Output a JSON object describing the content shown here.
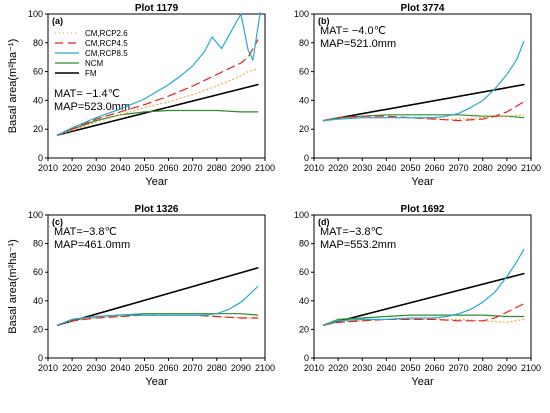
{
  "chart_data": [
    {
      "type": "line",
      "panel_label": "(a)",
      "title": "Plot 1179",
      "xlabel": "Year",
      "ylabel": "Basal area(m²ha⁻¹)",
      "xlim": [
        2010,
        2100
      ],
      "ylim": [
        0,
        100
      ],
      "xticks": [
        "2010",
        "2020",
        "2030",
        "2040",
        "2050",
        "2060",
        "2070",
        "2080",
        "2090",
        "2100"
      ],
      "yticks": [
        "0",
        "20",
        "40",
        "60",
        "80",
        "100"
      ],
      "annotations": [
        "MAT= −1.4℃",
        "MAP=523.0mm"
      ],
      "legend": {
        "placement": "top-left"
      },
      "series": [
        {
          "name": "CM,RCP2.6",
          "color": "#f2a93b",
          "dash": "1,3",
          "x": [
            2014,
            2020,
            2030,
            2040,
            2050,
            2060,
            2070,
            2080,
            2090,
            2093,
            2097
          ],
          "y": [
            16,
            19,
            25,
            30,
            35,
            39,
            44,
            50,
            57,
            60,
            62
          ]
        },
        {
          "name": "CM,RCP4.5",
          "color": "#e8211f",
          "dash": "8,5",
          "x": [
            2014,
            2020,
            2030,
            2040,
            2050,
            2060,
            2070,
            2080,
            2085,
            2090,
            2093,
            2097
          ],
          "y": [
            16,
            20,
            27,
            32,
            37,
            43,
            50,
            58,
            62,
            66,
            70,
            82
          ]
        },
        {
          "name": "CM,RCP8.5",
          "color": "#26a9d2",
          "dash": "",
          "x": [
            2014,
            2020,
            2030,
            2040,
            2050,
            2060,
            2065,
            2070,
            2075,
            2078,
            2082,
            2086,
            2090,
            2093,
            2095,
            2098
          ],
          "y": [
            16,
            21,
            28,
            34,
            41,
            51,
            57,
            64,
            74,
            84,
            76,
            88,
            100,
            75,
            68,
            101
          ]
        },
        {
          "name": "NCM",
          "color": "#2e8b2e",
          "dash": "",
          "x": [
            2014,
            2020,
            2030,
            2040,
            2050,
            2060,
            2070,
            2080,
            2090,
            2097
          ],
          "y": [
            16,
            20,
            26,
            30,
            32,
            33,
            33,
            33,
            32,
            32
          ]
        },
        {
          "name": "FM",
          "color": "#000000",
          "dash": "",
          "x": [
            2014,
            2097
          ],
          "y": [
            16,
            51
          ]
        }
      ]
    },
    {
      "type": "line",
      "panel_label": "(b)",
      "title": "Plot 3774",
      "xlabel": "Year",
      "ylabel": "",
      "xlim": [
        2010,
        2100
      ],
      "ylim": [
        0,
        100
      ],
      "xticks": [
        "2010",
        "2020",
        "2030",
        "2040",
        "2050",
        "2060",
        "2070",
        "2080",
        "2090",
        "2100"
      ],
      "yticks": [
        "0",
        "20",
        "40",
        "60",
        "80",
        "100"
      ],
      "annotations": [
        "MAT= −4.0℃",
        "MAP=521.0mm"
      ],
      "series": [
        {
          "name": "CM,RCP2.6",
          "color": "#f2a93b",
          "dash": "1,3",
          "x": [
            2014,
            2020,
            2030,
            2040,
            2050,
            2060,
            2070,
            2080,
            2090,
            2097
          ],
          "y": [
            26,
            27,
            28,
            28,
            28,
            27,
            27,
            28,
            29,
            30
          ]
        },
        {
          "name": "CM,RCP4.5",
          "color": "#e8211f",
          "dash": "8,5",
          "x": [
            2014,
            2020,
            2030,
            2040,
            2050,
            2060,
            2070,
            2080,
            2085,
            2090,
            2097
          ],
          "y": [
            26,
            28,
            29,
            29,
            28,
            27,
            26,
            27,
            29,
            32,
            39
          ]
        },
        {
          "name": "CM,RCP8.5",
          "color": "#26a9d2",
          "dash": "",
          "x": [
            2014,
            2020,
            2030,
            2040,
            2050,
            2060,
            2065,
            2070,
            2075,
            2080,
            2085,
            2090,
            2094,
            2097
          ],
          "y": [
            26,
            27,
            28,
            28,
            28,
            28,
            29,
            31,
            35,
            40,
            48,
            58,
            68,
            81
          ]
        },
        {
          "name": "NCM",
          "color": "#2e8b2e",
          "dash": "",
          "x": [
            2014,
            2020,
            2030,
            2040,
            2050,
            2060,
            2070,
            2080,
            2090,
            2097
          ],
          "y": [
            26,
            28,
            29,
            30,
            30,
            30,
            30,
            29,
            29,
            28
          ]
        },
        {
          "name": "FM",
          "color": "#000000",
          "dash": "",
          "x": [
            2014,
            2097
          ],
          "y": [
            26,
            51
          ]
        }
      ]
    },
    {
      "type": "line",
      "panel_label": "(c)",
      "title": "Plot 1326",
      "xlabel": "Year",
      "ylabel": "Basal area(m²ha⁻¹)",
      "xlim": [
        2010,
        2100
      ],
      "ylim": [
        0,
        100
      ],
      "xticks": [
        "2010",
        "2020",
        "2030",
        "2040",
        "2050",
        "2060",
        "2070",
        "2080",
        "2090",
        "2100"
      ],
      "yticks": [
        "0",
        "20",
        "40",
        "60",
        "80",
        "100"
      ],
      "annotations": [
        "MAT=−3.8℃",
        "MAP=461.0mm"
      ],
      "series": [
        {
          "name": "CM,RCP2.6",
          "color": "#f2a93b",
          "dash": "1,3",
          "x": [
            2014,
            2020,
            2030,
            2040,
            2050,
            2060,
            2070,
            2080,
            2090,
            2097
          ],
          "y": [
            23,
            26,
            28,
            29,
            30,
            30,
            30,
            29,
            28,
            28
          ]
        },
        {
          "name": "CM,RCP4.5",
          "color": "#e8211f",
          "dash": "8,5",
          "x": [
            2014,
            2020,
            2030,
            2040,
            2050,
            2060,
            2070,
            2080,
            2090,
            2097
          ],
          "y": [
            23,
            26,
            28,
            29,
            30,
            30,
            30,
            29,
            28,
            28
          ]
        },
        {
          "name": "CM,RCP8.5",
          "color": "#26a9d2",
          "dash": "",
          "x": [
            2014,
            2020,
            2030,
            2040,
            2050,
            2060,
            2070,
            2075,
            2080,
            2085,
            2090,
            2094,
            2097
          ],
          "y": [
            23,
            27,
            29,
            30,
            30,
            30,
            30,
            30,
            31,
            34,
            39,
            45,
            50
          ]
        },
        {
          "name": "NCM",
          "color": "#2e8b2e",
          "dash": "",
          "x": [
            2014,
            2020,
            2030,
            2040,
            2050,
            2060,
            2070,
            2080,
            2090,
            2097
          ],
          "y": [
            23,
            27,
            29,
            30,
            31,
            31,
            31,
            31,
            31,
            30
          ]
        },
        {
          "name": "FM",
          "color": "#000000",
          "dash": "",
          "x": [
            2014,
            2097
          ],
          "y": [
            23,
            63
          ]
        }
      ]
    },
    {
      "type": "line",
      "panel_label": "(d)",
      "title": "Plot 1692",
      "xlabel": "Year",
      "ylabel": "",
      "xlim": [
        2010,
        2100
      ],
      "ylim": [
        0,
        100
      ],
      "xticks": [
        "2010",
        "2020",
        "2030",
        "2040",
        "2050",
        "2060",
        "2070",
        "2080",
        "2090",
        "2100"
      ],
      "yticks": [
        "0",
        "20",
        "40",
        "60",
        "80",
        "100"
      ],
      "annotations": [
        "MAT=−3.8℃",
        "MAP=553.2mm"
      ],
      "series": [
        {
          "name": "CM,RCP2.6",
          "color": "#f2a93b",
          "dash": "1,3",
          "x": [
            2014,
            2020,
            2030,
            2040,
            2050,
            2060,
            2070,
            2080,
            2090,
            2097
          ],
          "y": [
            23,
            25,
            26,
            27,
            27,
            27,
            27,
            26,
            25,
            27
          ]
        },
        {
          "name": "CM,RCP4.5",
          "color": "#e8211f",
          "dash": "8,5",
          "x": [
            2014,
            2020,
            2030,
            2040,
            2050,
            2060,
            2070,
            2080,
            2085,
            2090,
            2097
          ],
          "y": [
            23,
            25,
            26,
            27,
            27,
            27,
            26,
            26,
            28,
            32,
            38
          ]
        },
        {
          "name": "CM,RCP8.5",
          "color": "#26a9d2",
          "dash": "",
          "x": [
            2014,
            2020,
            2030,
            2040,
            2050,
            2060,
            2065,
            2070,
            2075,
            2080,
            2085,
            2090,
            2094,
            2097
          ],
          "y": [
            23,
            26,
            27,
            27,
            28,
            28,
            29,
            31,
            34,
            39,
            46,
            57,
            67,
            76
          ]
        },
        {
          "name": "NCM",
          "color": "#2e8b2e",
          "dash": "",
          "x": [
            2014,
            2020,
            2030,
            2040,
            2050,
            2060,
            2070,
            2080,
            2090,
            2097
          ],
          "y": [
            23,
            27,
            28,
            29,
            30,
            30,
            30,
            30,
            29,
            29
          ]
        },
        {
          "name": "FM",
          "color": "#000000",
          "dash": "",
          "x": [
            2014,
            2097
          ],
          "y": [
            23,
            59
          ]
        }
      ]
    }
  ]
}
